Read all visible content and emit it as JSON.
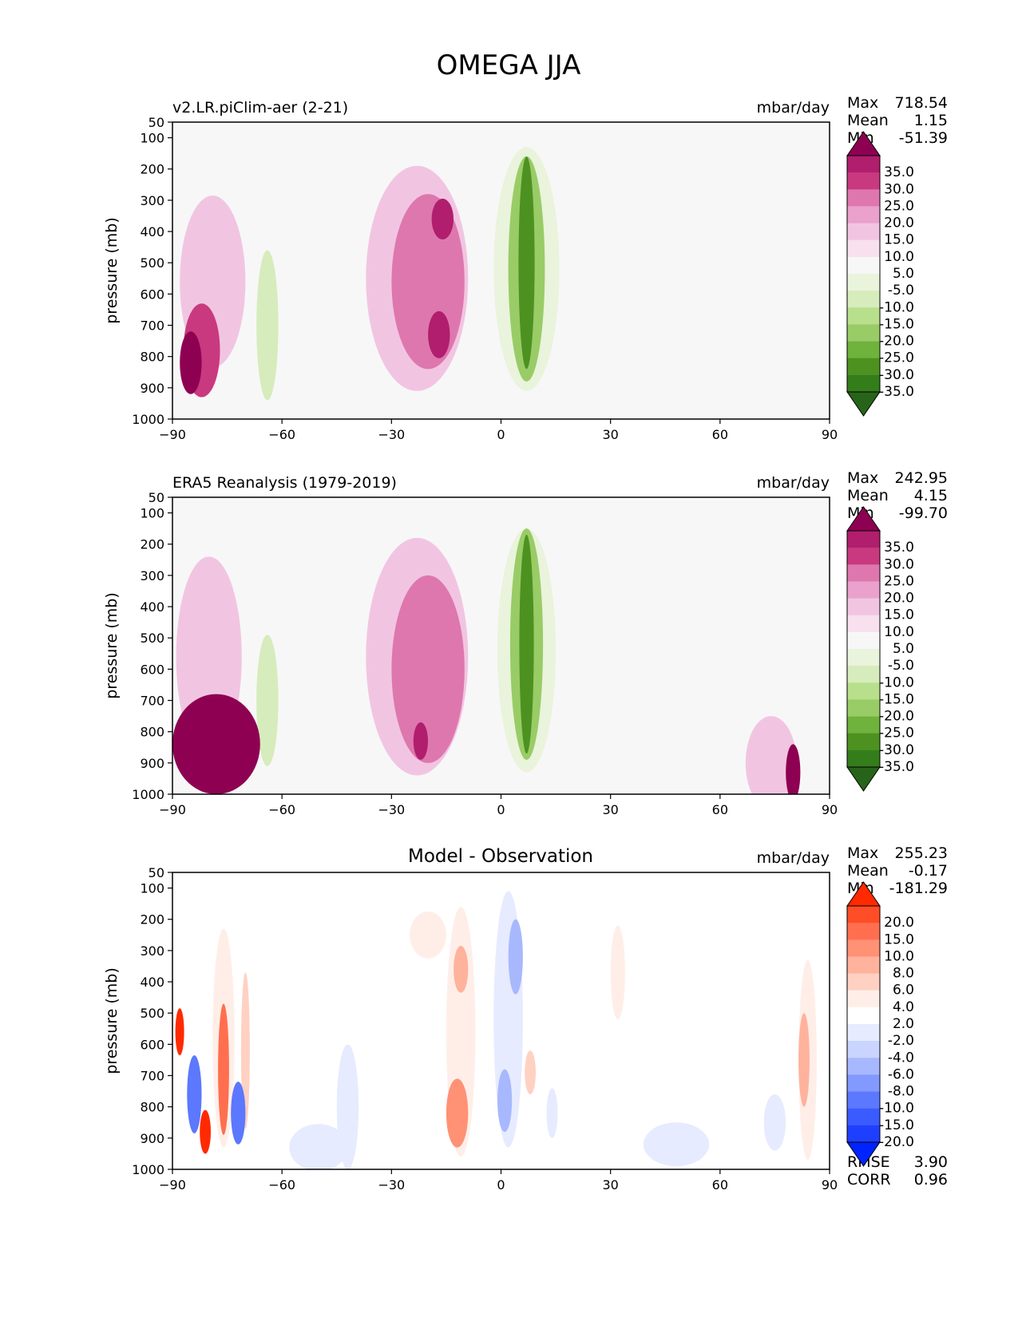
{
  "title": "OMEGA JJA",
  "chart_data": [
    {
      "type": "heatmap",
      "left_title": "v2.LR.piClim-aer (2-21)",
      "center_title": "",
      "units": "mbar/day",
      "stats": [
        [
          "Max",
          "718.54"
        ],
        [
          "Mean",
          "1.15"
        ],
        [
          "Min",
          "-51.39"
        ]
      ],
      "xlabel": "",
      "ylabel": "pressure (mb)",
      "xlim": [
        -90,
        90
      ],
      "xticks": [
        "−90",
        "−60",
        "−30",
        "0",
        "30",
        "60",
        "90"
      ],
      "ylim": [
        1000,
        50
      ],
      "yticks": [
        "50",
        "100",
        "200",
        "300",
        "400",
        "500",
        "600",
        "700",
        "800",
        "900",
        "1000"
      ],
      "colorbar_levels": [
        "35.0",
        "30.0",
        "25.0",
        "20.0",
        "15.0",
        "10.0",
        "5.0",
        "-5.0",
        "-10.0",
        "-15.0",
        "-20.0",
        "-25.0",
        "-30.0",
        "-35.0"
      ],
      "colorbar_colors": [
        "#8e0152",
        "#b01e6d",
        "#c9397f",
        "#de77ae",
        "#eaa1cb",
        "#f1c5e1",
        "#f8e0ee",
        "#f7f7f7",
        "#eaf3dc",
        "#d6ecbc",
        "#b8df8b",
        "#99cc66",
        "#6fb23c",
        "#4d9221",
        "#347d1b",
        "#276419"
      ],
      "features": [
        {
          "lat": -79,
          "p": 560,
          "w": 9,
          "h": 550,
          "v": 10
        },
        {
          "lat": -82,
          "p": 780,
          "w": 5,
          "h": 300,
          "v": 25
        },
        {
          "lat": -85,
          "p": 820,
          "w": 3,
          "h": 200,
          "v": 40
        },
        {
          "lat": -64,
          "p": 620,
          "w": 6,
          "h": 720,
          "v": -5
        },
        {
          "lat": -64,
          "p": 700,
          "w": 3,
          "h": 480,
          "v": -15
        },
        {
          "lat": -23,
          "p": 550,
          "w": 14,
          "h": 720,
          "v": 10
        },
        {
          "lat": -20,
          "p": 560,
          "w": 10,
          "h": 560,
          "v": 20
        },
        {
          "lat": -16,
          "p": 360,
          "w": 3,
          "h": 130,
          "v": 30
        },
        {
          "lat": -17,
          "p": 730,
          "w": 3,
          "h": 150,
          "v": 30
        },
        {
          "lat": 7,
          "p": 520,
          "w": 9,
          "h": 780,
          "v": -10
        },
        {
          "lat": 7,
          "p": 520,
          "w": 5,
          "h": 720,
          "v": -25
        },
        {
          "lat": 7,
          "p": 500,
          "w": 2.2,
          "h": 680,
          "v": -35
        },
        {
          "lat": 33,
          "p": 600,
          "w": 5,
          "h": 400,
          "v": 4
        },
        {
          "lat": 62,
          "p": 700,
          "w": 3,
          "h": 520,
          "v": -5
        }
      ]
    },
    {
      "type": "heatmap",
      "left_title": "ERA5 Reanalysis (1979-2019)",
      "center_title": "",
      "units": "mbar/day",
      "stats": [
        [
          "Max",
          "242.95"
        ],
        [
          "Mean",
          "4.15"
        ],
        [
          "Min",
          "-99.70"
        ]
      ],
      "xlabel": "",
      "ylabel": "pressure (mb)",
      "xlim": [
        -90,
        90
      ],
      "xticks": [
        "−90",
        "−60",
        "−30",
        "0",
        "30",
        "60",
        "90"
      ],
      "ylim": [
        1000,
        50
      ],
      "yticks": [
        "50",
        "100",
        "200",
        "300",
        "400",
        "500",
        "600",
        "700",
        "800",
        "900",
        "1000"
      ],
      "colorbar_levels": [
        "35.0",
        "30.0",
        "25.0",
        "20.0",
        "15.0",
        "10.0",
        "5.0",
        "-5.0",
        "-10.0",
        "-15.0",
        "-20.0",
        "-25.0",
        "-30.0",
        "-35.0"
      ],
      "colorbar_colors": [
        "#8e0152",
        "#b01e6d",
        "#c9397f",
        "#de77ae",
        "#eaa1cb",
        "#f1c5e1",
        "#f8e0ee",
        "#f7f7f7",
        "#eaf3dc",
        "#d6ecbc",
        "#b8df8b",
        "#99cc66",
        "#6fb23c",
        "#4d9221",
        "#347d1b",
        "#276419"
      ],
      "features": [
        {
          "lat": -80,
          "p": 560,
          "w": 9,
          "h": 640,
          "v": 10
        },
        {
          "lat": -78,
          "p": 840,
          "w": 12,
          "h": 320,
          "v": 40
        },
        {
          "lat": -65,
          "p": 600,
          "w": 6,
          "h": 720,
          "v": -5
        },
        {
          "lat": -64,
          "p": 700,
          "w": 3,
          "h": 420,
          "v": -15
        },
        {
          "lat": -23,
          "p": 560,
          "w": 14,
          "h": 760,
          "v": 10
        },
        {
          "lat": -20,
          "p": 600,
          "w": 10,
          "h": 600,
          "v": 20
        },
        {
          "lat": -22,
          "p": 830,
          "w": 2,
          "h": 120,
          "v": 30
        },
        {
          "lat": 7,
          "p": 540,
          "w": 8,
          "h": 780,
          "v": -10
        },
        {
          "lat": 7,
          "p": 520,
          "w": 4.5,
          "h": 740,
          "v": -25
        },
        {
          "lat": 7,
          "p": 520,
          "w": 2,
          "h": 700,
          "v": -35
        },
        {
          "lat": 62,
          "p": 800,
          "w": 2,
          "h": 300,
          "v": -5
        },
        {
          "lat": 74,
          "p": 900,
          "w": 7,
          "h": 300,
          "v": 10
        },
        {
          "lat": 80,
          "p": 930,
          "w": 2,
          "h": 180,
          "v": 35
        }
      ]
    },
    {
      "type": "heatmap",
      "left_title": "",
      "center_title": "Model - Observation",
      "units": "mbar/day",
      "stats": [
        [
          "Max",
          "255.23"
        ],
        [
          "Mean",
          "-0.17"
        ],
        [
          "Min",
          "-181.29"
        ]
      ],
      "extra_stats": [
        [
          "RMSE",
          "3.90"
        ],
        [
          "CORR",
          "0.96"
        ]
      ],
      "xlabel": "",
      "ylabel": "pressure (mb)",
      "xlim": [
        -90,
        90
      ],
      "xticks": [
        "−90",
        "−60",
        "−30",
        "0",
        "30",
        "60",
        "90"
      ],
      "ylim": [
        1000,
        50
      ],
      "yticks": [
        "50",
        "100",
        "200",
        "300",
        "400",
        "500",
        "600",
        "700",
        "800",
        "900",
        "1000"
      ],
      "colorbar_levels": [
        "20.0",
        "15.0",
        "10.0",
        "8.0",
        "6.0",
        "4.0",
        "2.0",
        "-2.0",
        "-4.0",
        "-6.0",
        "-8.0",
        "-10.0",
        "-15.0",
        "-20.0"
      ],
      "colorbar_colors": [
        "#ff2a00",
        "#ff4d26",
        "#ff6f4f",
        "#ff9175",
        "#ffb29c",
        "#ffd1c3",
        "#ffeee8",
        "#ffffff",
        "#e6ebff",
        "#c9d4ff",
        "#a8b8ff",
        "#8299ff",
        "#5b78ff",
        "#3a5cff",
        "#1f3fff",
        "#0024ff"
      ],
      "features": [
        {
          "lat": -76,
          "p": 580,
          "w": 3,
          "h": 700,
          "v": 3
        },
        {
          "lat": -76,
          "p": 680,
          "w": 1.5,
          "h": 420,
          "v": 12
        },
        {
          "lat": -70,
          "p": 620,
          "w": 1.2,
          "h": 500,
          "v": 5
        },
        {
          "lat": -84,
          "p": 760,
          "w": 2,
          "h": 250,
          "v": -15
        },
        {
          "lat": -81,
          "p": 880,
          "w": 1.5,
          "h": 140,
          "v": 20
        },
        {
          "lat": -72,
          "p": 820,
          "w": 2,
          "h": 200,
          "v": -12
        },
        {
          "lat": -88,
          "p": 560,
          "w": 1.2,
          "h": 150,
          "v": 20
        },
        {
          "lat": -50,
          "p": 930,
          "w": 8,
          "h": 150,
          "v": -3
        },
        {
          "lat": -42,
          "p": 800,
          "w": 3,
          "h": 400,
          "v": -2.5
        },
        {
          "lat": -20,
          "p": 250,
          "w": 5,
          "h": 150,
          "v": 3
        },
        {
          "lat": -11,
          "p": 560,
          "w": 4,
          "h": 800,
          "v": 3
        },
        {
          "lat": -11,
          "p": 360,
          "w": 2,
          "h": 150,
          "v": 7
        },
        {
          "lat": -12,
          "p": 820,
          "w": 3,
          "h": 220,
          "v": 8
        },
        {
          "lat": 2,
          "p": 520,
          "w": 4,
          "h": 820,
          "v": -3
        },
        {
          "lat": 4,
          "p": 320,
          "w": 2,
          "h": 240,
          "v": -8
        },
        {
          "lat": 1,
          "p": 780,
          "w": 2,
          "h": 200,
          "v": -8
        },
        {
          "lat": 8,
          "p": 690,
          "w": 1.5,
          "h": 140,
          "v": 5
        },
        {
          "lat": 14,
          "p": 820,
          "w": 1.5,
          "h": 160,
          "v": -4
        },
        {
          "lat": 32,
          "p": 370,
          "w": 2,
          "h": 300,
          "v": 2.5
        },
        {
          "lat": 48,
          "p": 920,
          "w": 9,
          "h": 140,
          "v": -3
        },
        {
          "lat": 75,
          "p": 850,
          "w": 3,
          "h": 180,
          "v": -4
        },
        {
          "lat": 84,
          "p": 650,
          "w": 2.5,
          "h": 640,
          "v": 3
        },
        {
          "lat": 83,
          "p": 650,
          "w": 1.5,
          "h": 300,
          "v": 6
        }
      ]
    }
  ]
}
